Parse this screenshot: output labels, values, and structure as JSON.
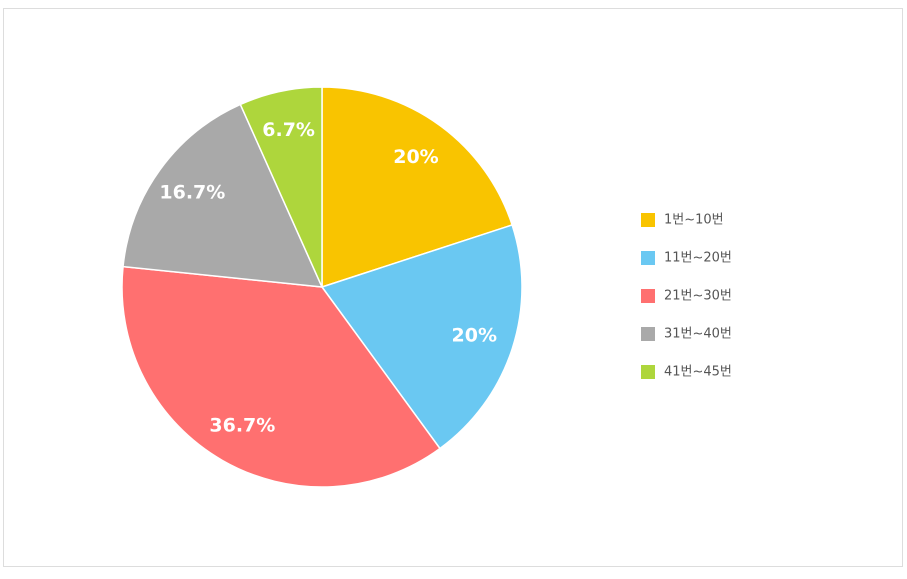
{
  "chart_data": {
    "type": "pie",
    "categories": [
      "1번~10번",
      "11번~20번",
      "21번~30번",
      "31번~40번",
      "41번~45번"
    ],
    "values": [
      20,
      20,
      36.7,
      16.7,
      6.7
    ],
    "value_labels": [
      "20%",
      "20%",
      "36.7%",
      "16.7%",
      "6.7%"
    ],
    "colors": [
      "#f9c400",
      "#6ac8f2",
      "#ff7070",
      "#a9a9a9",
      "#aed63c"
    ],
    "legend": "right"
  }
}
